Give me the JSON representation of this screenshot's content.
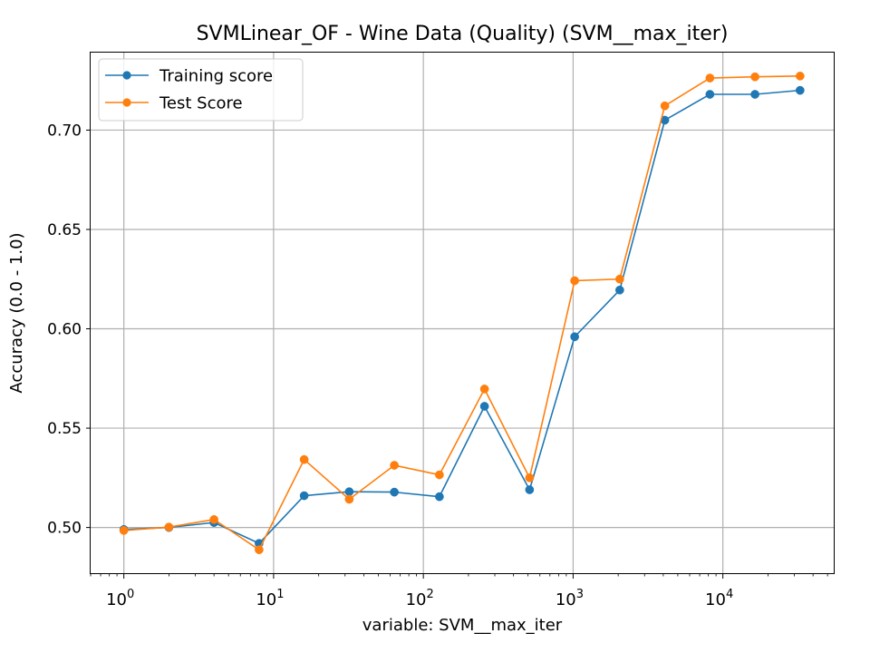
{
  "chart_data": {
    "type": "line",
    "title": "SVMLinear_OF - Wine Data (Quality) (SVM__max_iter)",
    "xlabel": "variable: SVM__max_iter",
    "ylabel": "Accuracy (0.0 - 1.0)",
    "xscale": "log",
    "xlim": [
      0.6,
      55000
    ],
    "ylim": [
      0.477,
      0.739
    ],
    "grid": true,
    "legend_position": "upper-left",
    "x": [
      1,
      2,
      4,
      8,
      16,
      32,
      64,
      128,
      256,
      512,
      1024,
      2048,
      4096,
      8192,
      16384,
      32768
    ],
    "series": [
      {
        "name": "Training score",
        "color": "#1f77b4",
        "values": [
          0.499,
          0.5,
          0.5025,
          0.492,
          0.516,
          0.518,
          0.5178,
          0.5155,
          0.561,
          0.519,
          0.596,
          0.6195,
          0.705,
          0.718,
          0.718,
          0.72
        ]
      },
      {
        "name": "Test Score",
        "color": "#ff7f0e",
        "values": [
          0.4985,
          0.5002,
          0.504,
          0.4888,
          0.5342,
          0.5142,
          0.5313,
          0.5265,
          0.5697,
          0.525,
          0.6242,
          0.625,
          0.7122,
          0.7262,
          0.7268,
          0.7272
        ]
      }
    ],
    "xticks": [
      {
        "value": 1,
        "base": "10",
        "exp": "0"
      },
      {
        "value": 10,
        "base": "10",
        "exp": "1"
      },
      {
        "value": 100,
        "base": "10",
        "exp": "2"
      },
      {
        "value": 1000,
        "base": "10",
        "exp": "3"
      },
      {
        "value": 10000,
        "base": "10",
        "exp": "4"
      }
    ],
    "yticks": [
      {
        "value": 0.5,
        "label": "0.50"
      },
      {
        "value": 0.55,
        "label": "0.55"
      },
      {
        "value": 0.6,
        "label": "0.60"
      },
      {
        "value": 0.65,
        "label": "0.65"
      },
      {
        "value": 0.7,
        "label": "0.70"
      }
    ]
  }
}
